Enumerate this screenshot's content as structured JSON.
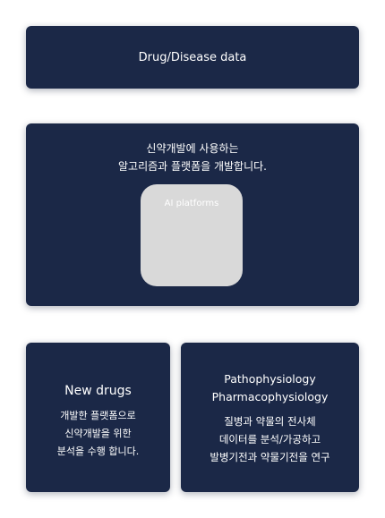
{
  "top_card": {
    "label": "Drug/Disease data"
  },
  "middle_card": {
    "description_lines": [
      "신약개발에 사용하는",
      "알고리즘과 플랫폼을 개발합니다."
    ],
    "platform_label": "AI platforms"
  },
  "left_card": {
    "title": "New drugs",
    "description_lines": [
      "개발한 플랫폼으로",
      "신약개발을 위한",
      "분석을 수행 합니다."
    ]
  },
  "right_card": {
    "title_lines": [
      "Pathophysiology",
      "Pharmacophysiology"
    ],
    "description_lines": [
      "질병과 약물의 전사체",
      "데이터를 분석/가공하고",
      "발병기전과 약물기전을 연구"
    ]
  },
  "colors": {
    "card_background": "#1b2847",
    "platform_box": "#d9d9d9",
    "text": "#ffffff"
  }
}
